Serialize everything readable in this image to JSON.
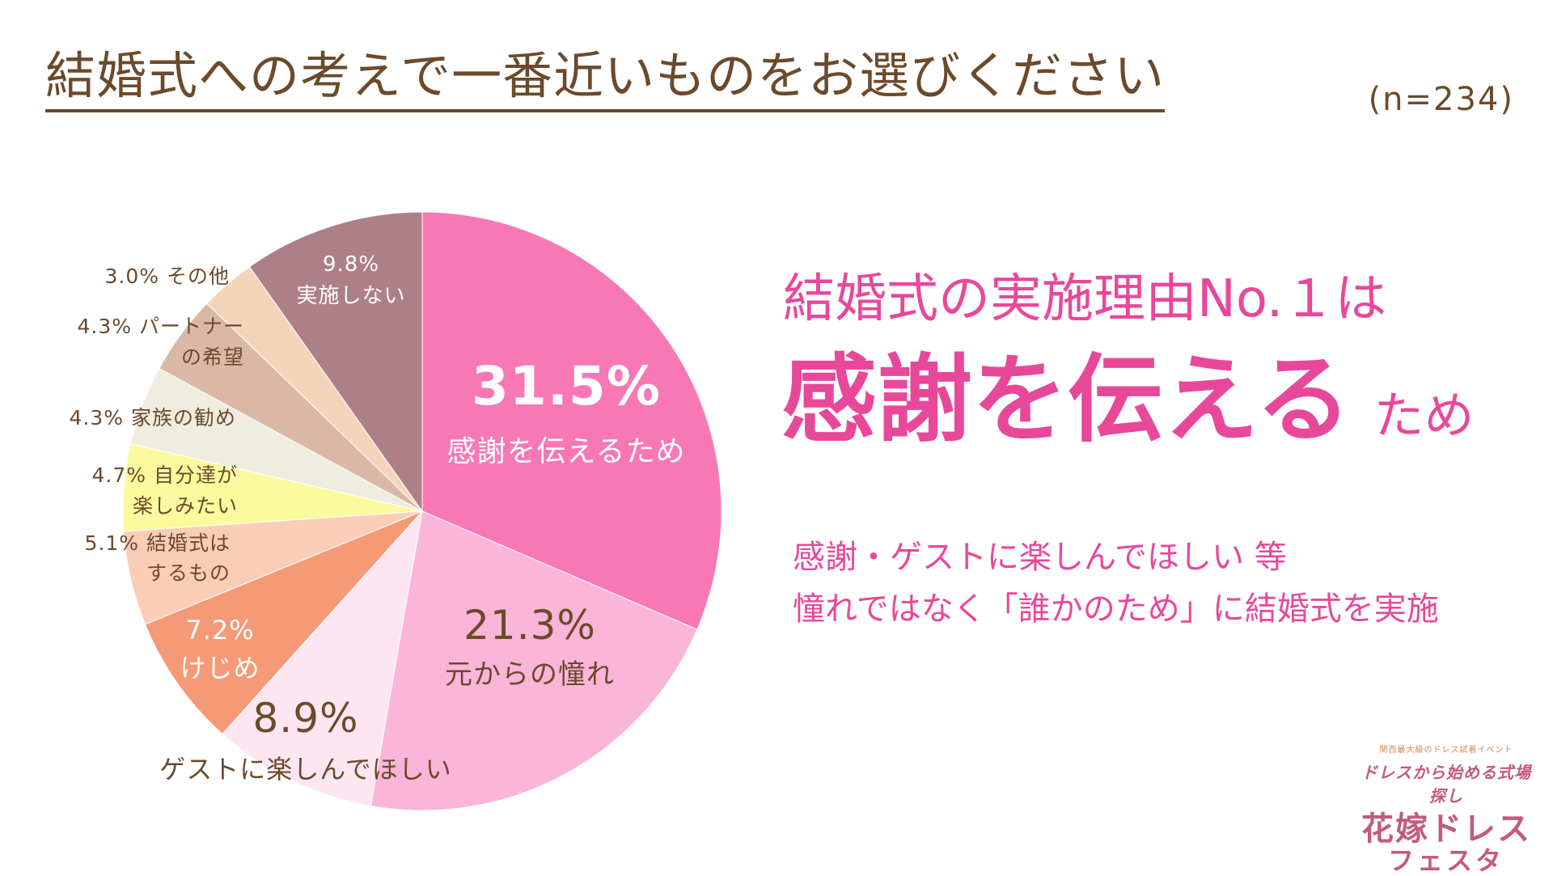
{
  "title": "結婚式への考えで一番近いものをお選びください",
  "sample_size": "(n=234)",
  "headline": {
    "line1": "結婚式の実施理由No.１は",
    "main": "感謝を伝える",
    "suffix": "ため"
  },
  "subtext": {
    "line1": "感謝・ゲストに楽しんでほしい 等",
    "line2": "憧れではなく「誰かのため」に結婚式を実施"
  },
  "logo": {
    "small": "関西最大級のドレス試着イベント",
    "mid": "ドレスから始める式場探し",
    "name_line1": "花嫁ドレス",
    "name_line2": "フェスタ"
  },
  "chart_data": {
    "type": "pie",
    "title": "結婚式への考えで一番近いものをお選びください",
    "unit": "%",
    "slices": [
      {
        "label": "感謝を伝えるため",
        "value": 31.5,
        "value_text": "31.5%",
        "color": "#f878b6"
      },
      {
        "label": "元からの憧れ",
        "value": 21.3,
        "value_text": "21.3%",
        "color": "#fab5d8"
      },
      {
        "label": "ゲストに楽しんでほしい",
        "value": 8.9,
        "value_text": "8.9%",
        "color": "#fde6f1"
      },
      {
        "label": "けじめ",
        "value": 7.2,
        "value_text": "7.2%",
        "color": "#f49a77"
      },
      {
        "label": "結婚式はするもの",
        "value": 5.1,
        "value_text": "5.1%",
        "color": "#fbcdb7"
      },
      {
        "label": "自分達が楽しみたい",
        "value": 4.7,
        "value_text": "4.7%",
        "color": "#fbfa9e"
      },
      {
        "label": "家族の勧め",
        "value": 4.3,
        "value_text": "4.3%",
        "color": "#efece0"
      },
      {
        "label": "パートナーの希望",
        "value": 4.3,
        "value_text": "4.3%",
        "color": "#d9b9a6"
      },
      {
        "label": "その他",
        "value": 3.0,
        "value_text": "3.0%",
        "color": "#f3d6ba"
      },
      {
        "label": "実施しない",
        "value": 9.8,
        "value_text": "9.8%",
        "color": "#ad8089"
      }
    ],
    "labels": [
      {
        "lines": [
          "31.5%",
          "感謝を伝えるため"
        ]
      },
      {
        "lines": [
          "21.3%",
          "元からの憧れ"
        ]
      },
      {
        "lines": [
          "8.9%",
          "ゲストに楽しんでほしい"
        ]
      },
      {
        "lines": [
          "7.2%",
          "けじめ"
        ]
      },
      {
        "lines": [
          "5.1% 結婚式は",
          "するもの"
        ]
      },
      {
        "lines": [
          "4.7% 自分達が",
          "楽しみたい"
        ]
      },
      {
        "lines": [
          "4.3% 家族の勧め"
        ]
      },
      {
        "lines": [
          "4.3% パートナー",
          "の希望"
        ]
      },
      {
        "lines": [
          "3.0% その他"
        ]
      },
      {
        "lines": [
          "9.8%",
          "実施しない"
        ]
      }
    ]
  }
}
